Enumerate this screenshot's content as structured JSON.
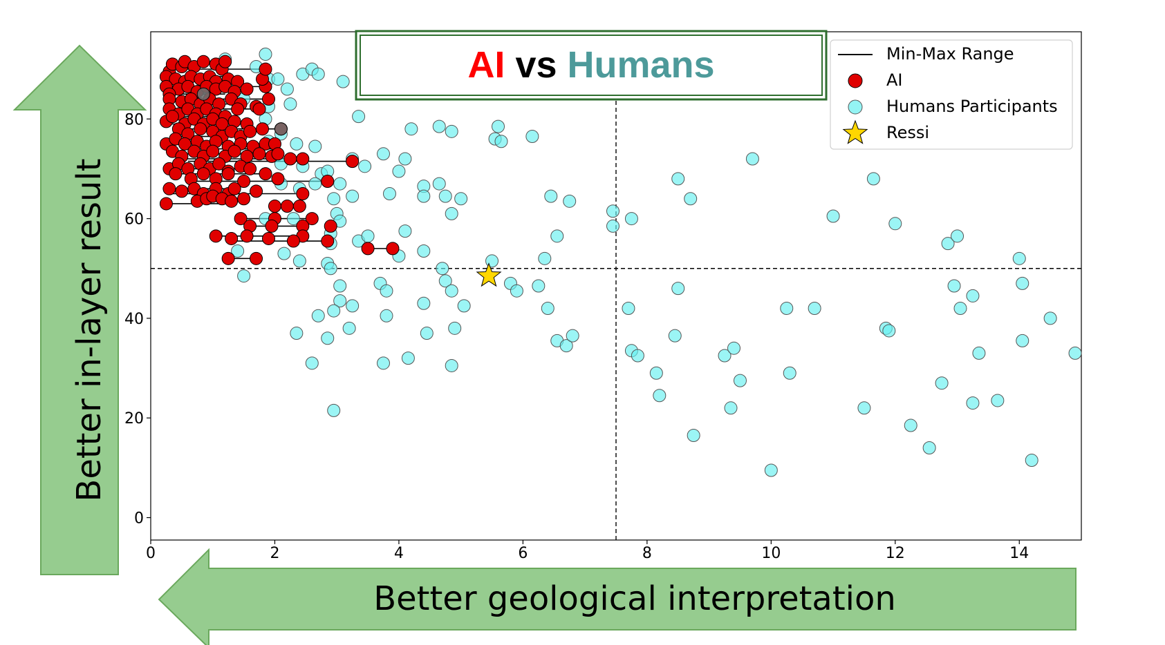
{
  "arrows": {
    "y_label": "Better in-layer result",
    "x_label": "Better geological interpretation",
    "fill_color": "#96cc8f",
    "stroke_color": "#6aa85c"
  },
  "title": {
    "part1": "AI",
    "part2": " vs ",
    "part3": "Humans",
    "color1": "#ff0000",
    "color2": "#000000",
    "color3": "#4d9a9a",
    "border_color": "#2e6e2e"
  },
  "legend": {
    "placement": "top-right",
    "items": [
      {
        "label": "Min-Max Range",
        "marker": "line"
      },
      {
        "label": "AI",
        "marker": "red-circle"
      },
      {
        "label": "Humans Participants",
        "marker": "cyan-circle"
      },
      {
        "label": "Ressi",
        "marker": "star"
      }
    ]
  },
  "chart_data": {
    "type": "scatter",
    "xlim": [
      0,
      15
    ],
    "ylim": [
      -4.5,
      97.5
    ],
    "xticks": [
      0,
      2,
      4,
      6,
      8,
      10,
      12,
      14
    ],
    "yticks": [
      0,
      20,
      40,
      60,
      80
    ],
    "grid": false,
    "reference_lines": {
      "x": 7.5,
      "y": 50
    },
    "colors": {
      "ai": "#e00000",
      "humans": "#66f0f0",
      "ressi": "#ffd700"
    },
    "humans": [
      [
        1.2,
        92
      ],
      [
        1.85,
        93
      ],
      [
        2.45,
        89
      ],
      [
        2.6,
        90
      ],
      [
        2.7,
        89
      ],
      [
        3.1,
        87.5
      ],
      [
        1.7,
        90.5
      ],
      [
        1.9,
        88
      ],
      [
        2.05,
        88
      ],
      [
        2.2,
        86
      ],
      [
        1.5,
        84
      ],
      [
        1.9,
        82.5
      ],
      [
        2.25,
        83
      ],
      [
        1.85,
        80
      ],
      [
        3.35,
        80.5
      ],
      [
        2.1,
        77
      ],
      [
        1.9,
        75.5
      ],
      [
        2.35,
        75
      ],
      [
        2.65,
        74.5
      ],
      [
        3.25,
        72
      ],
      [
        3.45,
        70.5
      ],
      [
        3.75,
        73
      ],
      [
        4.1,
        72
      ],
      [
        4.2,
        78
      ],
      [
        4.65,
        78.5
      ],
      [
        4.85,
        77.5
      ],
      [
        5.55,
        76
      ],
      [
        5.65,
        75.5
      ],
      [
        5.6,
        78.5
      ],
      [
        6.15,
        76.5
      ],
      [
        2.1,
        71
      ],
      [
        2.45,
        70.5
      ],
      [
        2.75,
        69
      ],
      [
        2.85,
        69.5
      ],
      [
        2.65,
        67
      ],
      [
        3.05,
        67
      ],
      [
        2.1,
        67
      ],
      [
        2.4,
        66
      ],
      [
        4.0,
        69.5
      ],
      [
        3.85,
        65
      ],
      [
        4.4,
        66.5
      ],
      [
        4.65,
        67
      ],
      [
        4.75,
        64.5
      ],
      [
        4.4,
        64.5
      ],
      [
        5.0,
        64
      ],
      [
        3.25,
        64.5
      ],
      [
        2.95,
        64
      ],
      [
        2.3,
        60
      ],
      [
        1.85,
        60
      ],
      [
        3.0,
        61
      ],
      [
        3.05,
        59.5
      ],
      [
        4.85,
        61
      ],
      [
        6.45,
        64.5
      ],
      [
        6.75,
        63.5
      ],
      [
        7.45,
        61.5
      ],
      [
        7.45,
        58.5
      ],
      [
        2.9,
        57
      ],
      [
        2.9,
        55
      ],
      [
        3.35,
        55.5
      ],
      [
        3.5,
        56.5
      ],
      [
        4.1,
        57.5
      ],
      [
        4.4,
        53.5
      ],
      [
        4.0,
        52.5
      ],
      [
        1.4,
        53.5
      ],
      [
        2.15,
        53
      ],
      [
        2.4,
        51.5
      ],
      [
        2.85,
        51
      ],
      [
        2.9,
        50
      ],
      [
        1.5,
        48.5
      ],
      [
        3.05,
        46.5
      ],
      [
        3.7,
        47
      ],
      [
        3.8,
        45.5
      ],
      [
        4.7,
        50
      ],
      [
        4.75,
        47.5
      ],
      [
        4.85,
        45.5
      ],
      [
        5.05,
        42.5
      ],
      [
        5.5,
        51.5
      ],
      [
        5.8,
        47
      ],
      [
        5.9,
        45.5
      ],
      [
        6.25,
        46.5
      ],
      [
        6.35,
        52
      ],
      [
        6.55,
        56.5
      ],
      [
        3.05,
        43.5
      ],
      [
        2.95,
        41.5
      ],
      [
        3.25,
        42.5
      ],
      [
        2.7,
        40.5
      ],
      [
        3.8,
        40.5
      ],
      [
        4.4,
        43
      ],
      [
        2.35,
        37
      ],
      [
        3.2,
        38
      ],
      [
        2.85,
        36
      ],
      [
        4.45,
        37
      ],
      [
        4.9,
        38
      ],
      [
        2.6,
        31
      ],
      [
        3.75,
        31
      ],
      [
        4.15,
        32
      ],
      [
        4.85,
        30.5
      ],
      [
        2.95,
        21.5
      ],
      [
        6.4,
        42
      ],
      [
        6.55,
        35.5
      ],
      [
        6.7,
        34.5
      ],
      [
        6.8,
        36.5
      ],
      [
        7.7,
        42
      ],
      [
        7.75,
        60
      ],
      [
        7.75,
        33.5
      ],
      [
        7.85,
        32.5
      ],
      [
        8.15,
        29
      ],
      [
        8.2,
        24.5
      ],
      [
        8.45,
        36.5
      ],
      [
        8.5,
        46
      ],
      [
        8.5,
        68
      ],
      [
        8.7,
        64
      ],
      [
        8.75,
        16.5
      ],
      [
        9.25,
        32.5
      ],
      [
        9.35,
        22
      ],
      [
        9.4,
        34
      ],
      [
        9.5,
        27.5
      ],
      [
        9.7,
        72
      ],
      [
        10.0,
        9.5
      ],
      [
        10.25,
        42
      ],
      [
        10.3,
        29
      ],
      [
        10.7,
        42
      ],
      [
        11.0,
        60.5
      ],
      [
        11.5,
        22
      ],
      [
        11.65,
        68
      ],
      [
        11.85,
        38
      ],
      [
        11.9,
        37.5
      ],
      [
        12.0,
        59
      ],
      [
        12.25,
        18.5
      ],
      [
        12.55,
        14
      ],
      [
        12.75,
        27
      ],
      [
        12.85,
        55
      ],
      [
        13.0,
        56.5
      ],
      [
        12.95,
        46.5
      ],
      [
        13.05,
        42
      ],
      [
        13.25,
        44.5
      ],
      [
        13.25,
        23
      ],
      [
        13.35,
        33
      ],
      [
        13.65,
        23.5
      ],
      [
        14.0,
        52
      ],
      [
        14.05,
        47
      ],
      [
        14.05,
        35.5
      ],
      [
        14.2,
        11.5
      ],
      [
        14.5,
        40
      ],
      [
        14.9,
        33
      ]
    ],
    "ai_ranges": [
      [
        0.55,
        1.2,
        91.5
      ],
      [
        0.35,
        1.85,
        90
      ],
      [
        0.25,
        1.3,
        88.5
      ],
      [
        0.55,
        1.4,
        87.5
      ],
      [
        0.35,
        1.85,
        86.5
      ],
      [
        0.3,
        1.2,
        85
      ],
      [
        0.3,
        1.9,
        84
      ],
      [
        0.45,
        1.35,
        83
      ],
      [
        0.25,
        1.75,
        82
      ],
      [
        0.35,
        1.15,
        80.5
      ],
      [
        0.25,
        1.55,
        79
      ],
      [
        0.45,
        1.8,
        78
      ],
      [
        0.8,
        2.1,
        78
      ],
      [
        0.35,
        1.25,
        76.5
      ],
      [
        0.3,
        2.0,
        75
      ],
      [
        0.5,
        1.95,
        74
      ],
      [
        0.4,
        2.05,
        73
      ],
      [
        0.45,
        2.45,
        72
      ],
      [
        0.6,
        3.25,
        71.5
      ],
      [
        0.3,
        1.5,
        70
      ],
      [
        0.4,
        1.85,
        69
      ],
      [
        0.65,
        2.85,
        67.5
      ],
      [
        0.3,
        1.35,
        66
      ],
      [
        0.25,
        2.45,
        65
      ],
      [
        0.75,
        1.5,
        64
      ],
      [
        0.3,
        1.15,
        63
      ],
      [
        1.45,
        2.6,
        60
      ],
      [
        1.6,
        2.45,
        58.5
      ],
      [
        1.05,
        2.45,
        56.5
      ],
      [
        1.25,
        2.85,
        55.5
      ],
      [
        3.5,
        3.9,
        54
      ],
      [
        1.25,
        1.7,
        52
      ]
    ],
    "ai": [
      [
        0.3,
        89.5
      ],
      [
        0.35,
        91
      ],
      [
        0.5,
        90.5
      ],
      [
        0.55,
        91.5
      ],
      [
        0.7,
        90.5
      ],
      [
        0.85,
        91.5
      ],
      [
        1.05,
        91
      ],
      [
        1.15,
        90
      ],
      [
        1.2,
        91.5
      ],
      [
        0.25,
        88.5
      ],
      [
        0.4,
        88
      ],
      [
        0.55,
        87.5
      ],
      [
        0.65,
        88.5
      ],
      [
        0.8,
        88
      ],
      [
        0.95,
        88.5
      ],
      [
        1.05,
        87.5
      ],
      [
        1.25,
        88
      ],
      [
        1.4,
        87.5
      ],
      [
        0.25,
        86.5
      ],
      [
        0.45,
        86
      ],
      [
        0.6,
        86.5
      ],
      [
        0.75,
        85.5
      ],
      [
        0.9,
        86.5
      ],
      [
        1.05,
        86
      ],
      [
        1.2,
        86.5
      ],
      [
        1.35,
        85.5
      ],
      [
        1.55,
        86
      ],
      [
        1.85,
        86.5
      ],
      [
        1.8,
        88
      ],
      [
        1.85,
        90
      ],
      [
        0.3,
        85
      ],
      [
        0.3,
        84
      ],
      [
        0.5,
        83.5
      ],
      [
        0.65,
        84
      ],
      [
        0.8,
        83
      ],
      [
        0.95,
        84
      ],
      [
        1.1,
        83
      ],
      [
        1.3,
        84
      ],
      [
        1.45,
        83
      ],
      [
        1.7,
        82.5
      ],
      [
        1.9,
        84
      ],
      [
        0.3,
        82
      ],
      [
        0.45,
        81
      ],
      [
        0.6,
        82
      ],
      [
        0.75,
        81
      ],
      [
        0.9,
        82
      ],
      [
        1.05,
        81
      ],
      [
        1.2,
        80.5
      ],
      [
        1.4,
        82
      ],
      [
        1.75,
        82
      ],
      [
        0.25,
        79.5
      ],
      [
        0.35,
        80.5
      ],
      [
        0.55,
        79
      ],
      [
        0.7,
        80
      ],
      [
        0.85,
        79
      ],
      [
        1.0,
        80
      ],
      [
        1.15,
        79
      ],
      [
        1.35,
        79.5
      ],
      [
        1.55,
        79
      ],
      [
        0.45,
        78
      ],
      [
        0.6,
        77
      ],
      [
        0.8,
        78
      ],
      [
        1.0,
        77.5
      ],
      [
        1.15,
        76.5
      ],
      [
        1.3,
        77.5
      ],
      [
        1.45,
        76.5
      ],
      [
        1.6,
        77.5
      ],
      [
        1.8,
        78
      ],
      [
        2.1,
        78
      ],
      [
        0.25,
        75
      ],
      [
        0.4,
        76
      ],
      [
        0.55,
        75
      ],
      [
        0.75,
        75.5
      ],
      [
        0.9,
        74.5
      ],
      [
        1.05,
        75.5
      ],
      [
        1.25,
        74.5
      ],
      [
        1.45,
        75
      ],
      [
        1.65,
        74.5
      ],
      [
        1.85,
        75
      ],
      [
        2.0,
        75
      ],
      [
        0.35,
        73.5
      ],
      [
        0.5,
        72.5
      ],
      [
        0.7,
        73.5
      ],
      [
        0.85,
        72.5
      ],
      [
        1.0,
        73.5
      ],
      [
        1.2,
        72.5
      ],
      [
        1.35,
        73.5
      ],
      [
        1.55,
        72.5
      ],
      [
        1.75,
        73
      ],
      [
        1.95,
        72.5
      ],
      [
        2.05,
        73
      ],
      [
        2.25,
        72
      ],
      [
        2.45,
        72
      ],
      [
        3.25,
        71.5
      ],
      [
        0.3,
        70
      ],
      [
        0.45,
        71
      ],
      [
        0.6,
        70
      ],
      [
        0.8,
        71
      ],
      [
        0.95,
        70
      ],
      [
        1.1,
        71
      ],
      [
        1.25,
        69.5
      ],
      [
        1.45,
        70.5
      ],
      [
        1.6,
        70
      ],
      [
        0.4,
        69
      ],
      [
        0.65,
        68
      ],
      [
        0.85,
        69
      ],
      [
        1.05,
        68
      ],
      [
        1.25,
        69
      ],
      [
        1.5,
        67.5
      ],
      [
        1.85,
        69
      ],
      [
        2.05,
        68
      ],
      [
        2.85,
        67.5
      ],
      [
        0.3,
        66
      ],
      [
        0.5,
        65.5
      ],
      [
        0.7,
        66
      ],
      [
        0.85,
        65
      ],
      [
        1.05,
        66
      ],
      [
        1.25,
        65
      ],
      [
        1.35,
        66
      ],
      [
        1.7,
        65.5
      ],
      [
        2.45,
        65
      ],
      [
        0.25,
        63
      ],
      [
        0.75,
        63.5
      ],
      [
        0.9,
        64
      ],
      [
        1.0,
        64.5
      ],
      [
        1.15,
        64
      ],
      [
        1.3,
        63.5
      ],
      [
        1.5,
        64
      ],
      [
        2.0,
        62.5
      ],
      [
        2.2,
        62.5
      ],
      [
        2.4,
        62.5
      ],
      [
        1.45,
        60
      ],
      [
        2.0,
        60
      ],
      [
        2.6,
        60
      ],
      [
        1.6,
        58.5
      ],
      [
        1.95,
        58.5
      ],
      [
        2.45,
        58.5
      ],
      [
        2.9,
        58.5
      ],
      [
        1.05,
        56.5
      ],
      [
        1.3,
        56
      ],
      [
        1.55,
        56.5
      ],
      [
        1.9,
        56
      ],
      [
        2.45,
        56.5
      ],
      [
        2.3,
        55.5
      ],
      [
        2.85,
        55.5
      ],
      [
        3.5,
        54
      ],
      [
        3.9,
        54
      ],
      [
        1.25,
        52
      ],
      [
        1.7,
        52
      ]
    ],
    "ai_gray": [
      [
        0.85,
        85
      ],
      [
        2.1,
        78
      ]
    ],
    "ressi": [
      5.45,
      48.5
    ]
  }
}
